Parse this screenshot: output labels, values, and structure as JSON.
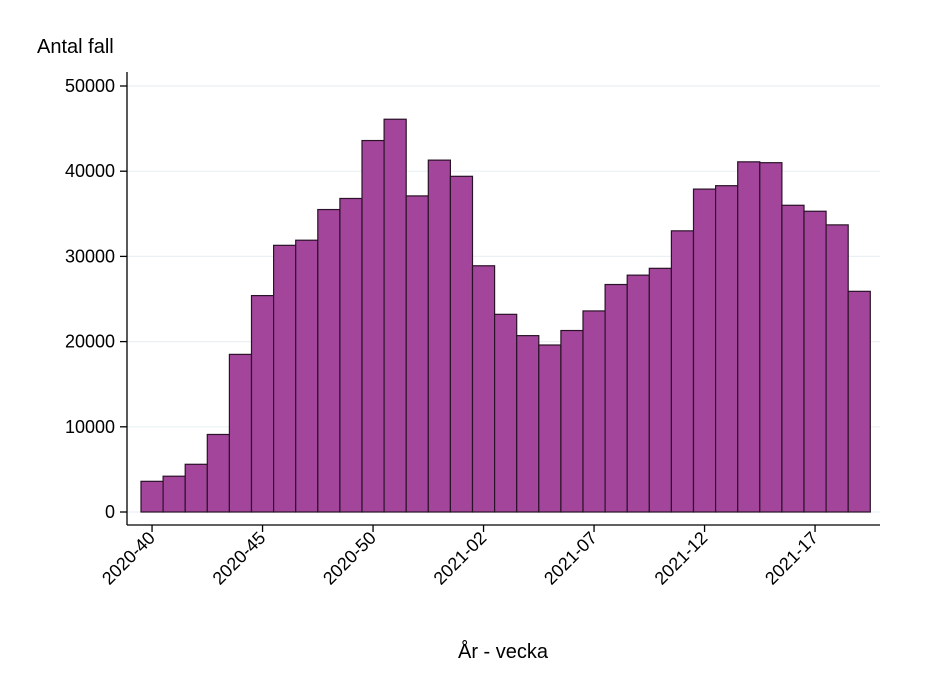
{
  "chart_data": {
    "type": "bar",
    "title": "",
    "xlabel": "År - vecka",
    "ylabel": "Antal fall",
    "ylim": [
      0,
      50000
    ],
    "yticks": [
      0,
      10000,
      20000,
      30000,
      40000,
      50000
    ],
    "ytick_labels": [
      "0",
      "10000",
      "20000",
      "30000",
      "40000",
      "50000"
    ],
    "xtick_labels": [
      "2020-40",
      "2020-45",
      "2020-50",
      "2021-02",
      "2021-07",
      "2021-12",
      "2021-17"
    ],
    "grid": true,
    "bar_color": "#a3469b",
    "bar_edge_color": "#2a1228",
    "categories": [
      "2020-40",
      "2020-41",
      "2020-42",
      "2020-43",
      "2020-44",
      "2020-45",
      "2020-46",
      "2020-47",
      "2020-48",
      "2020-49",
      "2020-50",
      "2020-51",
      "2020-52",
      "2020-53",
      "2021-01",
      "2021-02",
      "2021-03",
      "2021-04",
      "2021-05",
      "2021-06",
      "2021-07",
      "2021-08",
      "2021-09",
      "2021-10",
      "2021-11",
      "2021-12",
      "2021-13",
      "2021-14",
      "2021-15",
      "2021-16",
      "2021-17",
      "2021-18",
      "2021-19"
    ],
    "values": [
      3600,
      4200,
      5600,
      9100,
      18500,
      25400,
      31300,
      31900,
      35500,
      36800,
      43600,
      46100,
      37100,
      41300,
      39400,
      28900,
      23200,
      20700,
      19600,
      21300,
      23600,
      26700,
      27800,
      28600,
      33000,
      37900,
      38300,
      41100,
      41000,
      36000,
      35300,
      33700,
      25900
    ]
  }
}
